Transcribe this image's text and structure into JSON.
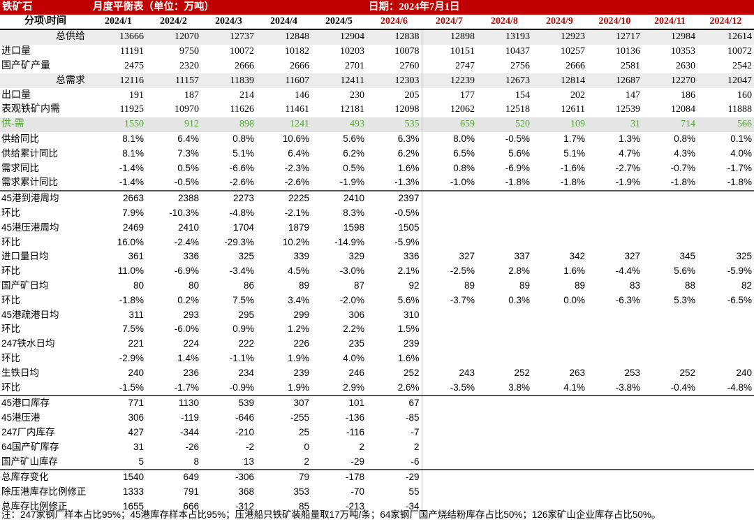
{
  "title": {
    "left": "铁矿石",
    "center": "月度平衡表（单位：万吨）",
    "date": "日期：2024年7月1日"
  },
  "header_label": "分项\\时间",
  "months": [
    "2024/1",
    "2024/2",
    "2024/3",
    "2024/4",
    "2024/5",
    "2024/6",
    "2024/7",
    "2024/8",
    "2024/9",
    "2024/10",
    "2024/11",
    "2024/12"
  ],
  "colors": {
    "title_bg": "#c00000",
    "future_month": "#c00000",
    "supply_demand_text": "#4ea72e"
  },
  "rows": [
    {
      "label": "总供给",
      "style": "sum",
      "cells": [
        "13666",
        "12070",
        "12737",
        "12848",
        "12904",
        "12838",
        "12898",
        "13193",
        "12923",
        "12717",
        "12984",
        "12614"
      ]
    },
    {
      "label": "进口量",
      "cells": [
        "11191",
        "9750",
        "10072",
        "10182",
        "10203",
        "10078",
        "10151",
        "10437",
        "10257",
        "10136",
        "10353",
        "10072"
      ]
    },
    {
      "label": "国产矿产量",
      "cells": [
        "2475",
        "2320",
        "2666",
        "2666",
        "2701",
        "2760",
        "2747",
        "2756",
        "2666",
        "2581",
        "2630",
        "2542"
      ]
    },
    {
      "label": "总需求",
      "style": "sum",
      "cells": [
        "12116",
        "11157",
        "11839",
        "11607",
        "12411",
        "12303",
        "12239",
        "12673",
        "12814",
        "12687",
        "12270",
        "12047"
      ]
    },
    {
      "label": "出口量",
      "cells": [
        "191",
        "187",
        "214",
        "146",
        "230",
        "205",
        "177",
        "154",
        "202",
        "147",
        "186",
        "160"
      ]
    },
    {
      "label": "表观铁矿内需",
      "cells": [
        "11925",
        "10970",
        "11626",
        "11461",
        "12181",
        "12098",
        "12062",
        "12518",
        "12611",
        "12539",
        "12084",
        "11888"
      ]
    },
    {
      "label": "供-需",
      "style": "green",
      "cells": [
        "1550",
        "912",
        "898",
        "1241",
        "493",
        "535",
        "659",
        "520",
        "109",
        "31",
        "714",
        "566"
      ]
    },
    {
      "label": "供给同比",
      "style": "pct",
      "cells": [
        "8.1%",
        "6.4%",
        "0.8%",
        "10.6%",
        "5.6%",
        "6.3%",
        "8.0%",
        "-0.5%",
        "1.7%",
        "1.3%",
        "0.8%",
        "0.1%"
      ]
    },
    {
      "label": "供给累计同比",
      "style": "pct",
      "cells": [
        "8.1%",
        "7.3%",
        "5.1%",
        "6.4%",
        "6.2%",
        "6.2%",
        "6.5%",
        "5.6%",
        "5.1%",
        "4.7%",
        "4.3%",
        "4.0%"
      ]
    },
    {
      "label": "需求同比",
      "style": "pct",
      "cells": [
        "-1.4%",
        "0.5%",
        "-6.6%",
        "-2.3%",
        "0.5%",
        "1.6%",
        "0.8%",
        "-6.9%",
        "-1.6%",
        "-2.7%",
        "-0.7%",
        "-1.7%"
      ]
    },
    {
      "label": "需求累计同比",
      "style": "pct",
      "cells": [
        "-1.4%",
        "-0.5%",
        "-2.6%",
        "-2.6%",
        "-1.9%",
        "-1.3%",
        "-1.0%",
        "-1.8%",
        "-1.8%",
        "-1.9%",
        "-1.8%",
        "-1.8%"
      ]
    },
    {
      "label": "45港到港周均",
      "style": "pct",
      "border": true,
      "cells": [
        "2663",
        "2388",
        "2273",
        "2225",
        "2410",
        "2397",
        "",
        "",
        "",
        "",
        "",
        ""
      ]
    },
    {
      "label": "环比",
      "style": "pct",
      "cells": [
        "7.9%",
        "-10.3%",
        "-4.8%",
        "-2.1%",
        "8.3%",
        "-0.5%",
        "",
        "",
        "",
        "",
        "",
        ""
      ]
    },
    {
      "label": "45港压港周均",
      "style": "pct",
      "cells": [
        "2469",
        "2410",
        "1704",
        "1879",
        "1598",
        "1505",
        "",
        "",
        "",
        "",
        "",
        ""
      ]
    },
    {
      "label": "环比",
      "style": "pct",
      "cells": [
        "16.0%",
        "-2.4%",
        "-29.3%",
        "10.2%",
        "-14.9%",
        "-5.9%",
        "",
        "",
        "",
        "",
        "",
        ""
      ]
    },
    {
      "label": "进口量日均",
      "style": "pct",
      "cells": [
        "361",
        "336",
        "325",
        "339",
        "329",
        "336",
        "327",
        "337",
        "342",
        "327",
        "345",
        "325"
      ]
    },
    {
      "label": "环比",
      "style": "pct",
      "cells": [
        "11.0%",
        "-6.9%",
        "-3.4%",
        "4.5%",
        "-3.0%",
        "2.1%",
        "-2.5%",
        "2.8%",
        "1.6%",
        "-4.4%",
        "5.6%",
        "-5.9%"
      ]
    },
    {
      "label": "国产矿日均",
      "style": "pct",
      "cells": [
        "80",
        "80",
        "86",
        "89",
        "87",
        "92",
        "89",
        "89",
        "89",
        "83",
        "88",
        "82"
      ]
    },
    {
      "label": "环比",
      "style": "pct",
      "cells": [
        "-1.8%",
        "0.2%",
        "7.5%",
        "3.4%",
        "-2.0%",
        "5.6%",
        "-3.7%",
        "0.3%",
        "0.0%",
        "-6.3%",
        "5.3%",
        "-6.5%"
      ]
    },
    {
      "label": "45港疏港日均",
      "style": "pct",
      "cells": [
        "311",
        "293",
        "295",
        "299",
        "306",
        "310",
        "",
        "",
        "",
        "",
        "",
        ""
      ]
    },
    {
      "label": "环比",
      "style": "pct",
      "cells": [
        "7.5%",
        "-6.0%",
        "0.9%",
        "1.2%",
        "2.2%",
        "1.5%",
        "",
        "",
        "",
        "",
        "",
        ""
      ]
    },
    {
      "label": "247铁水日均",
      "style": "pct",
      "cells": [
        "221",
        "224",
        "222",
        "226",
        "235",
        "239",
        "",
        "",
        "",
        "",
        "",
        ""
      ]
    },
    {
      "label": "环比",
      "style": "pct",
      "cells": [
        "-2.9%",
        "1.4%",
        "-1.1%",
        "1.9%",
        "4.0%",
        "1.6%",
        "",
        "",
        "",
        "",
        "",
        ""
      ]
    },
    {
      "label": "生铁日均",
      "style": "pct",
      "cells": [
        "240",
        "236",
        "234",
        "239",
        "246",
        "252",
        "243",
        "252",
        "263",
        "253",
        "252",
        "240"
      ]
    },
    {
      "label": "环比",
      "style": "pct",
      "cells": [
        "-1.5%",
        "-1.7%",
        "-0.9%",
        "1.9%",
        "2.9%",
        "2.6%",
        "-3.5%",
        "3.8%",
        "4.1%",
        "-3.8%",
        "-0.4%",
        "-4.8%"
      ]
    },
    {
      "label": "45港口库存",
      "style": "pct",
      "border": true,
      "cells": [
        "771",
        "1130",
        "539",
        "307",
        "101",
        "67",
        "",
        "",
        "",
        "",
        "",
        ""
      ]
    },
    {
      "label": "45港压港",
      "style": "pct",
      "cells": [
        "306",
        "-119",
        "-646",
        "-255",
        "-136",
        "-85",
        "",
        "",
        "",
        "",
        "",
        ""
      ]
    },
    {
      "label": "247厂内库存",
      "style": "pct",
      "cells": [
        "427",
        "-344",
        "-210",
        "25",
        "-116",
        "-7",
        "",
        "",
        "",
        "",
        "",
        ""
      ]
    },
    {
      "label": "64国产矿库存",
      "style": "pct",
      "cells": [
        "31",
        "-26",
        "-2",
        "0",
        "2",
        "2",
        "",
        "",
        "",
        "",
        "",
        ""
      ]
    },
    {
      "label": "国产矿山库存",
      "style": "pct",
      "cells": [
        "5",
        "8",
        "13",
        "2",
        "-29",
        "-6",
        "",
        "",
        "",
        "",
        "",
        ""
      ]
    },
    {
      "label": "总库存变化",
      "style": "pct",
      "border": true,
      "cells": [
        "1540",
        "649",
        "-306",
        "79",
        "-178",
        "-29",
        "",
        "",
        "",
        "",
        "",
        ""
      ]
    },
    {
      "label": "除压港库存比例修正",
      "style": "pct",
      "cells": [
        "1333",
        "791",
        "368",
        "353",
        "-70",
        "55",
        "",
        "",
        "",
        "",
        "",
        ""
      ]
    },
    {
      "label": "总库存比例修正",
      "style": "pct",
      "cells": [
        "1655",
        "666",
        "-312",
        "85",
        "-213",
        "-34",
        "",
        "",
        "",
        "",
        "",
        ""
      ]
    }
  ],
  "note": "注：247家钢厂样本占比95%；45港库存样本占比95%；压港船只铁矿装船量取17万吨/条；64家钢厂国产烧结粉库存占比50%；126家矿山企业库存占比50%。"
}
